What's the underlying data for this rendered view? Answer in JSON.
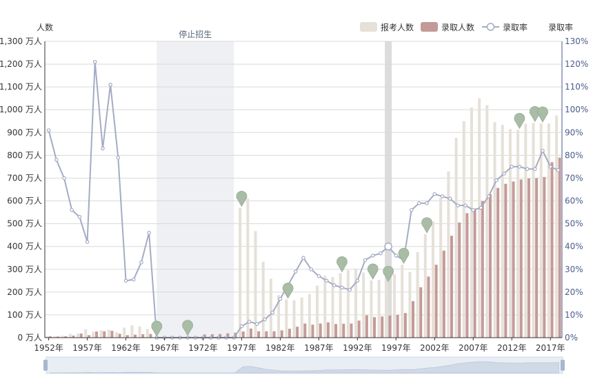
{
  "chart_data": {
    "type": "bar-line",
    "y_left_label": "人数",
    "y_right_label": "录取率",
    "ylim_left": [
      0,
      1300
    ],
    "ylim_right": [
      0,
      130
    ],
    "y_left_ticks": [
      "0 万人",
      "100 万人",
      "200 万人",
      "300 万人",
      "400 万人",
      "500 万人",
      "600 万人",
      "700 万人",
      "800 万人",
      "900 万人",
      "1,000 万人",
      "1,100 万人",
      "1,200 万人",
      "1,300 万人"
    ],
    "y_right_ticks": [
      "0%",
      "10%",
      "20%",
      "30%",
      "40%",
      "50%",
      "60%",
      "70%",
      "80%",
      "90%",
      "100%",
      "110%",
      "120%",
      "130%"
    ],
    "x_tick_labels": [
      "1952年",
      "1957年",
      "1962年",
      "1967年",
      "1972年",
      "1977年",
      "1982年",
      "1987年",
      "1992年",
      "1997年",
      "2002年",
      "2007年",
      "2012年",
      "2017年"
    ],
    "years": [
      1952,
      1953,
      1954,
      1955,
      1956,
      1957,
      1958,
      1959,
      1960,
      1961,
      1962,
      1963,
      1964,
      1965,
      1966,
      1967,
      1968,
      1969,
      1970,
      1971,
      1972,
      1973,
      1974,
      1975,
      1976,
      1977,
      1978,
      1979,
      1980,
      1981,
      1982,
      1983,
      1984,
      1985,
      1986,
      1987,
      1988,
      1989,
      1990,
      1991,
      1992,
      1993,
      1994,
      1995,
      1996,
      1997,
      1998,
      1999,
      2000,
      2001,
      2002,
      2003,
      2004,
      2005,
      2006,
      2007,
      2008,
      2009,
      2010,
      2011,
      2012,
      2013,
      2014,
      2015,
      2016,
      2017,
      2018
    ],
    "series": [
      {
        "name": "报考人数",
        "color": "#e6e1d8",
        "values": [
          7,
          6,
          9,
          16,
          18,
          37,
          26,
          32,
          35,
          24,
          44,
          54,
          49,
          38,
          0,
          0,
          0,
          0,
          0,
          0,
          0,
          0,
          0,
          0,
          0,
          570,
          610,
          468,
          333,
          259,
          187,
          167,
          164,
          176,
          191,
          228,
          272,
          266,
          283,
          296,
          303,
          286,
          251,
          253,
          241,
          278,
          320,
          288,
          375,
          454,
          510,
          613,
          729,
          877,
          950,
          1010,
          1050,
          1020,
          946,
          933,
          915,
          912,
          939,
          942,
          940,
          940,
          975
        ]
      },
      {
        "name": "录取人数",
        "color": "#c49a98",
        "values": [
          6,
          5,
          6,
          9,
          18,
          11,
          27,
          28,
          30,
          17,
          11,
          13,
          15,
          16,
          0,
          0,
          0,
          0,
          4,
          4,
          14,
          15,
          16,
          19,
          22,
          27,
          40,
          28,
          28,
          28,
          32,
          39,
          48,
          62,
          57,
          62,
          67,
          60,
          61,
          62,
          75,
          98,
          90,
          93,
          97,
          100,
          108,
          160,
          221,
          268,
          320,
          382,
          447,
          505,
          546,
          566,
          599,
          629,
          657,
          675,
          685,
          694,
          698,
          700,
          705,
          770,
          790
        ]
      },
      {
        "name": "录取率",
        "color": "#a4abc3",
        "values": [
          91,
          78,
          70,
          56,
          53,
          42,
          121,
          83,
          111,
          79,
          25,
          25.5,
          33,
          46,
          0,
          0,
          0,
          0,
          0,
          0,
          0,
          0,
          0,
          0,
          0,
          5,
          7,
          6,
          8,
          11,
          17,
          23,
          29,
          35,
          30,
          27,
          25,
          23,
          22,
          21,
          25,
          34,
          36,
          37,
          40,
          36,
          34,
          56,
          59,
          59,
          63,
          62,
          61,
          58,
          58,
          56,
          57,
          62,
          69,
          72,
          75,
          75,
          74,
          74,
          82,
          75,
          73.5
        ]
      }
    ],
    "annotations": [
      {
        "type": "band",
        "label": "停止招生",
        "from": 1966,
        "to": 1976
      }
    ],
    "legend": [
      {
        "label": "报考人数",
        "symbol": "rect",
        "color": "#e6e1d8"
      },
      {
        "label": "录取人数",
        "symbol": "rect",
        "color": "#c49a98"
      },
      {
        "label": "录取率",
        "symbol": "line-circle",
        "color": "#a4abc3"
      }
    ],
    "markpoint_years": [
      1966,
      1970,
      1977,
      1983,
      1990,
      1994,
      1996,
      1998,
      2001,
      2013,
      2015,
      2016
    ],
    "highlight_year": 1996
  }
}
